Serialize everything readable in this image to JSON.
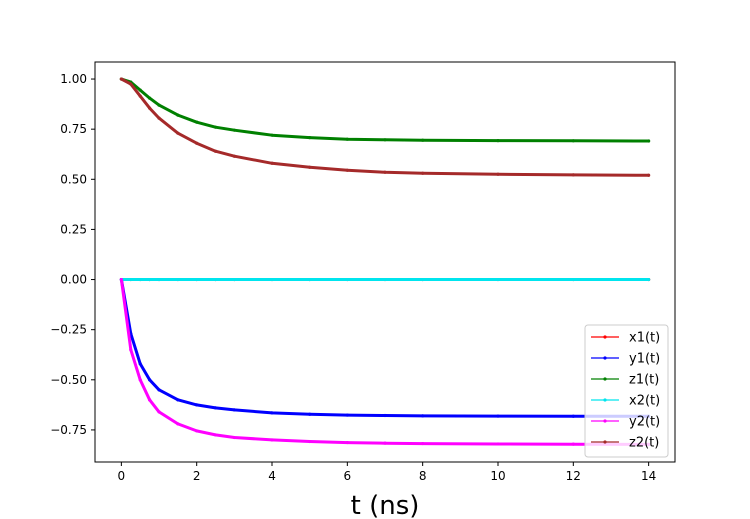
{
  "chart_data": {
    "type": "line",
    "title": "",
    "xlabel": "t (ns)",
    "ylabel": "",
    "xlim": [
      -0.7,
      14.7
    ],
    "ylim": [
      -0.91,
      1.085
    ],
    "xticks": [
      0,
      2,
      4,
      6,
      8,
      10,
      12,
      14
    ],
    "xtick_labels": [
      "0",
      "2",
      "4",
      "6",
      "8",
      "10",
      "12",
      "14"
    ],
    "yticks": [
      1.0,
      0.75,
      0.5,
      0.25,
      0.0,
      -0.25,
      -0.5,
      -0.75
    ],
    "ytick_labels": [
      "1.00",
      "0.75",
      "0.50",
      "0.25",
      "0.00",
      "−0.25",
      "−0.50",
      "−0.75"
    ],
    "grid": false,
    "legend_position": "bottom-right",
    "x": [
      0,
      0.25,
      0.5,
      0.75,
      1,
      1.5,
      2,
      2.5,
      3,
      4,
      5,
      6,
      7,
      8,
      10,
      12,
      14
    ],
    "series": [
      {
        "name": "x1(t)",
        "color": "#ff0000",
        "values": [
          0,
          0,
          0,
          0,
          0,
          0,
          0,
          0,
          0,
          0,
          0,
          0,
          0,
          0,
          0,
          0,
          0
        ]
      },
      {
        "name": "y1(t)",
        "color": "#0000ff",
        "values": [
          0,
          -0.27,
          -0.42,
          -0.5,
          -0.55,
          -0.6,
          -0.625,
          -0.64,
          -0.65,
          -0.665,
          -0.672,
          -0.676,
          -0.678,
          -0.68,
          -0.681,
          -0.682,
          -0.682
        ]
      },
      {
        "name": "z1(t)",
        "color": "#008000",
        "values": [
          1.0,
          0.985,
          0.945,
          0.905,
          0.87,
          0.82,
          0.785,
          0.76,
          0.745,
          0.72,
          0.708,
          0.7,
          0.697,
          0.695,
          0.693,
          0.692,
          0.691
        ]
      },
      {
        "name": "x2(t)",
        "color": "#00e5ee",
        "values": [
          0,
          0,
          0,
          0,
          0,
          0,
          0,
          0,
          0,
          0,
          0,
          0,
          0,
          0,
          0,
          0,
          0
        ]
      },
      {
        "name": "y2(t)",
        "color": "#ff00ff",
        "values": [
          0,
          -0.35,
          -0.5,
          -0.6,
          -0.66,
          -0.72,
          -0.755,
          -0.775,
          -0.788,
          -0.8,
          -0.808,
          -0.813,
          -0.816,
          -0.818,
          -0.82,
          -0.821,
          -0.822
        ]
      },
      {
        "name": "z2(t)",
        "color": "#a52a2a",
        "values": [
          1.0,
          0.975,
          0.915,
          0.855,
          0.805,
          0.73,
          0.68,
          0.64,
          0.615,
          0.58,
          0.56,
          0.545,
          0.535,
          0.53,
          0.525,
          0.522,
          0.52
        ]
      }
    ]
  }
}
